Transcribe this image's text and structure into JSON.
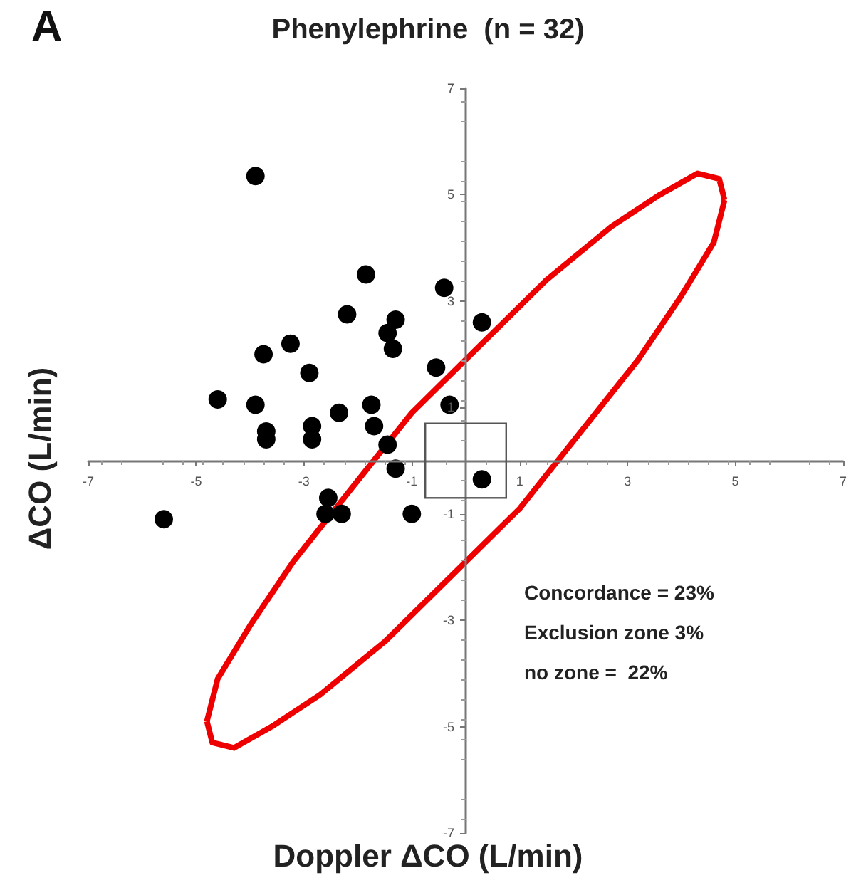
{
  "chart_data": {
    "type": "scatter",
    "title": "Phenylephrine  (n = 32)",
    "xlabel": "Doppler ΔCO (L/min)",
    "ylabel": "ΔCO (L/min)",
    "annotations": [
      "A",
      "Concordance = 23%",
      "Exclusion zone 3%",
      "no zone =  22%"
    ],
    "x": [
      -3.9,
      -1.85,
      -0.4,
      0.3,
      -2.2,
      -1.3,
      -1.45,
      -1.35,
      -3.25,
      -3.75,
      -2.9,
      -0.55,
      -4.6,
      -3.9,
      -2.35,
      -1.75,
      -0.3,
      -3.7,
      -3.7,
      -2.85,
      -2.85,
      -1.7,
      -1.45,
      -1.3,
      0.3,
      -5.6,
      -2.55,
      -2.6,
      -2.3,
      -1.0
    ],
    "series": [
      {
        "color": "#000000",
        "values": [
          5.35,
          3.5,
          3.25,
          2.6,
          2.75,
          2.65,
          2.4,
          2.1,
          2.2,
          2.0,
          1.65,
          1.75,
          1.15,
          1.05,
          0.9,
          1.05,
          1.05,
          0.55,
          0.4,
          0.65,
          0.4,
          0.65,
          0.3,
          -0.15,
          -0.35,
          -1.1,
          -0.7,
          -1.0,
          -1.0,
          -1.0
        ]
      },
      {
        "type": "line",
        "color": "#ee0000",
        "marker": "none",
        "x": [
          -4.8,
          -4.6,
          -4.0,
          -3.2,
          -2.1,
          -1.0,
          0.3,
          1.5,
          2.7,
          3.6,
          4.3,
          4.7,
          4.8
        ],
        "values": [
          -4.9,
          -4.1,
          -3.1,
          -1.9,
          -0.5,
          0.9,
          2.2,
          3.4,
          4.4,
          5.0,
          5.4,
          5.3,
          4.9
        ]
      },
      {
        "type": "line",
        "color": "#ee0000",
        "marker": "none",
        "x": [
          -4.8,
          -4.7,
          -4.3,
          -3.6,
          -2.7,
          -1.5,
          -0.3,
          1.0,
          2.1,
          3.2,
          4.0,
          4.6,
          4.8
        ],
        "values": [
          -4.9,
          -5.3,
          -5.4,
          -5.0,
          -4.4,
          -3.4,
          -2.2,
          -0.9,
          0.5,
          1.9,
          3.1,
          4.1,
          4.9
        ]
      }
    ],
    "xlim": [
      -7,
      7
    ],
    "ylim": [
      -7,
      7
    ],
    "xticks": [
      -7,
      -5,
      -3,
      -1,
      1,
      3,
      5,
      7
    ],
    "yticks": [
      -7,
      -5,
      -3,
      -1,
      1,
      3,
      5,
      7
    ],
    "grid": false,
    "marker": "circle"
  }
}
